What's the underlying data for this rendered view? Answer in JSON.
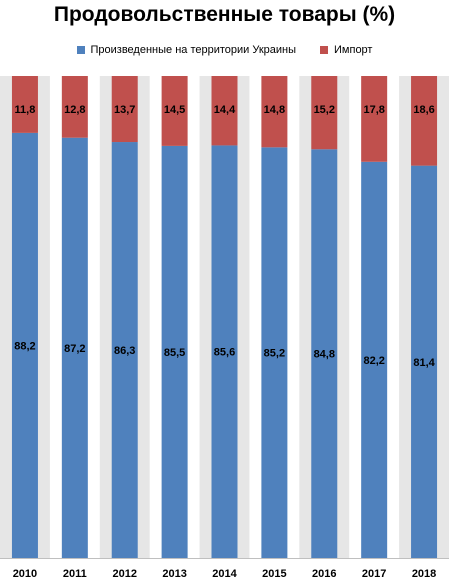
{
  "chart_data": {
    "type": "bar",
    "stacked": true,
    "title": "Продовольственные товары (%)",
    "xlabel": "",
    "ylabel": "",
    "categories": [
      "2010",
      "2011",
      "2012",
      "2013",
      "2014",
      "2015",
      "2016",
      "2017",
      "2018"
    ],
    "ylim": [
      0,
      100
    ],
    "grid": false,
    "legend_position": "top",
    "series": [
      {
        "name": "Произведенные  на территории Украины",
        "color": "#4f81bd",
        "values": [
          88.2,
          87.2,
          86.3,
          85.5,
          85.6,
          85.2,
          84.8,
          82.2,
          81.4
        ],
        "labels": [
          "88,2",
          "87,2",
          "86,3",
          "85,5",
          "85,6",
          "85,2",
          "84,8",
          "82,2",
          "81,4"
        ]
      },
      {
        "name": "Импорт",
        "color": "#c0504d",
        "values": [
          11.8,
          12.8,
          13.7,
          14.5,
          14.4,
          14.8,
          15.2,
          17.8,
          18.6
        ],
        "labels": [
          "11,8",
          "12,8",
          "13,7",
          "14,5",
          "14,4",
          "14,8",
          "15,2",
          "17,8",
          "18,6"
        ]
      }
    ],
    "background_band_color": "#e6e6e6"
  }
}
